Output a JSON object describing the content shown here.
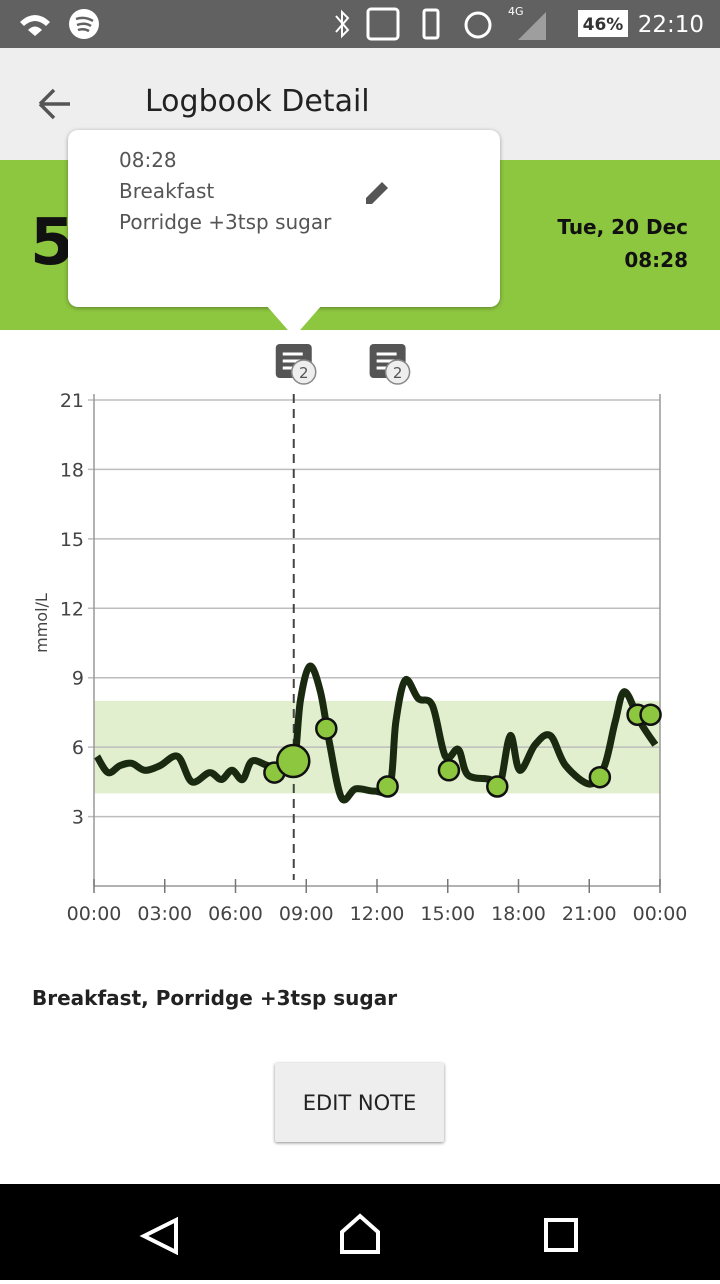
{
  "status_bar": {
    "network": "4G",
    "battery": "46%",
    "time": "22:10"
  },
  "app_bar": {
    "title": "Logbook Detail"
  },
  "header": {
    "reading": "5",
    "date": "Tue, 20 Dec",
    "time": "08:28"
  },
  "popup": {
    "time": "08:28",
    "meal": "Breakfast",
    "note": "Porridge +3tsp sugar"
  },
  "chart_data": {
    "type": "line",
    "y_label": "mmol/L",
    "xlim": [
      0,
      24
    ],
    "ylim": [
      0,
      21
    ],
    "grid": true,
    "xticks": [
      {
        "value": 0,
        "label": "00:00"
      },
      {
        "value": 3,
        "label": "03:00"
      },
      {
        "value": 6,
        "label": "06:00"
      },
      {
        "value": 9,
        "label": "09:00"
      },
      {
        "value": 12,
        "label": "12:00"
      },
      {
        "value": 15,
        "label": "15:00"
      },
      {
        "value": 18,
        "label": "18:00"
      },
      {
        "value": 21,
        "label": "21:00"
      },
      {
        "value": 24,
        "label": "00:00"
      }
    ],
    "yticks": [
      3,
      6,
      9,
      12,
      15,
      18,
      21
    ],
    "target_range": [
      4,
      8
    ],
    "target_color": "#e2efcf",
    "cursor_x": 8.47,
    "series": [
      {
        "color": "#1a2a10",
        "x": [
          0.13,
          0.6,
          1.1,
          1.6,
          2.15,
          2.8,
          3.55,
          4.15,
          4.9,
          5.4,
          5.85,
          6.3,
          6.7,
          7.4,
          8.1,
          8.5,
          8.75,
          9.15,
          9.6,
          10.0,
          10.5,
          11.1,
          11.9,
          12.55,
          12.8,
          13.2,
          13.75,
          14.35,
          14.9,
          15.45,
          15.85,
          16.8,
          17.2,
          17.65,
          18.05,
          18.7,
          19.35,
          20.0,
          21.05,
          21.65,
          22.1,
          22.5,
          23.15,
          23.8
        ],
        "values": [
          5.6,
          4.9,
          5.2,
          5.3,
          5.0,
          5.2,
          5.6,
          4.5,
          4.9,
          4.6,
          5.0,
          4.6,
          5.4,
          5.2,
          5.2,
          5.4,
          8.0,
          9.5,
          8.4,
          6.1,
          3.8,
          4.2,
          4.1,
          4.3,
          7.1,
          8.9,
          8.1,
          7.8,
          5.6,
          5.9,
          4.8,
          4.6,
          4.3,
          6.5,
          5.0,
          6.1,
          6.5,
          5.2,
          4.4,
          5.2,
          7.1,
          8.4,
          7.1,
          6.1
        ]
      },
      {
        "color": "#8dc63f",
        "type": "scatter",
        "highlight": 1,
        "x": [
          7.65,
          8.45,
          9.85,
          12.45,
          15.05,
          17.1,
          21.45,
          23.05,
          23.6
        ],
        "values": [
          4.9,
          5.4,
          6.8,
          4.3,
          5.0,
          4.3,
          4.7,
          7.4,
          7.4
        ]
      }
    ],
    "notes": {
      "x": [
        8.47,
        12.45
      ],
      "counts": [
        2,
        2
      ]
    }
  },
  "note_text": "Breakfast, Porridge +3tsp sugar",
  "button": "EDIT NOTE"
}
